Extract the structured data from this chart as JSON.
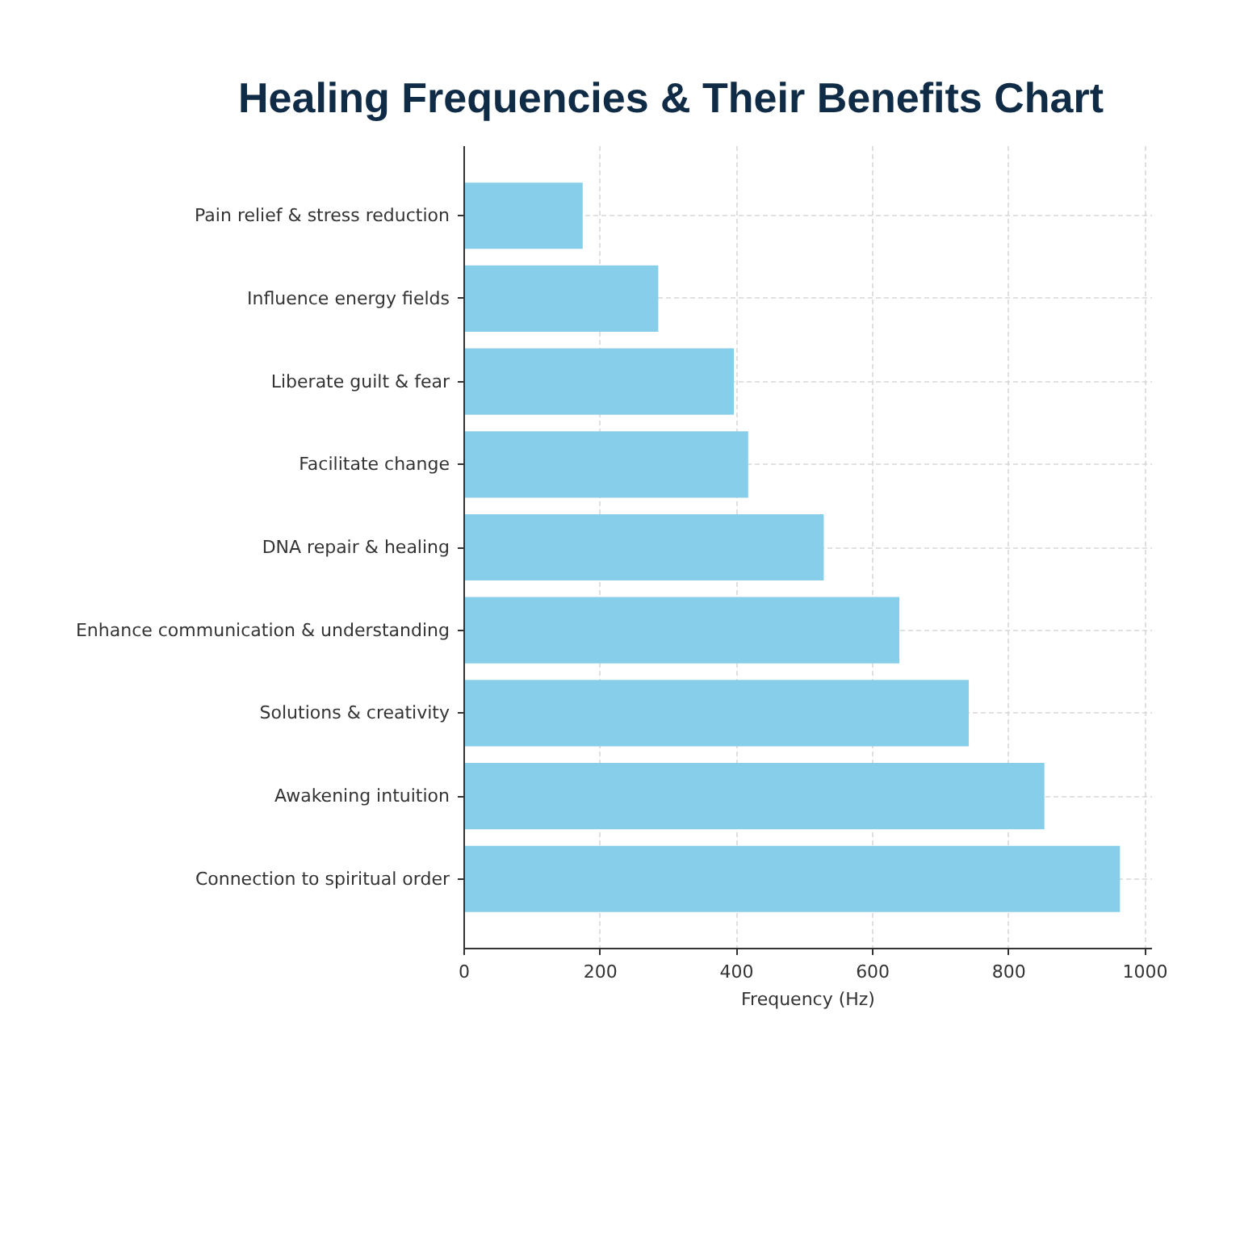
{
  "chart_data": {
    "type": "bar",
    "orientation": "horizontal",
    "title": "Healing Frequencies & Their Benefits Chart",
    "xlabel": "Frequency (Hz)",
    "categories": [
      "Pain relief & stress reduction",
      "Influence energy fields",
      "Liberate guilt & fear",
      "Facilitate change",
      "DNA repair & healing",
      "Enhance communication & understanding",
      "Solutions & creativity",
      "Awakening intuition",
      "Connection to spiritual order"
    ],
    "values": [
      174,
      285,
      396,
      417,
      528,
      639,
      741,
      852,
      963
    ],
    "color": "#87ceeb",
    "xlim": [
      0,
      1010
    ],
    "xticks": [
      0,
      200,
      400,
      600,
      800,
      1000
    ],
    "grid": true
  }
}
